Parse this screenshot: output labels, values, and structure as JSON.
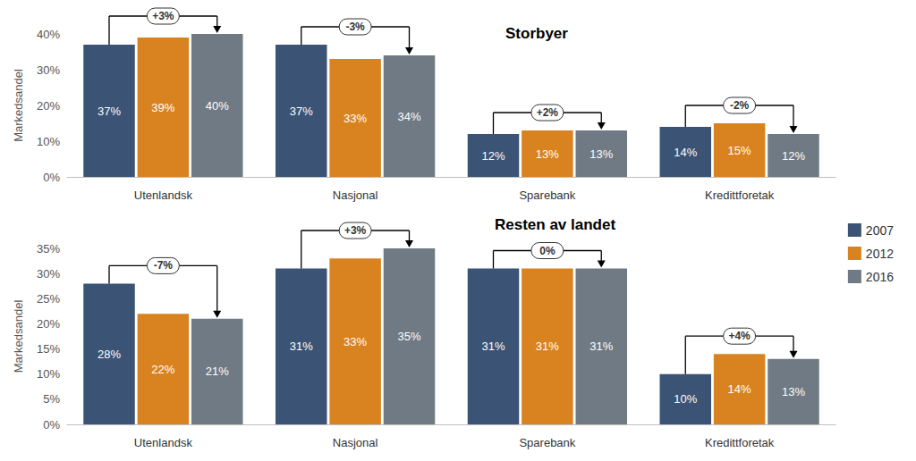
{
  "chart_data": [
    {
      "type": "bar",
      "title": "Storbyer",
      "y_label": "Markedsandel",
      "categories": [
        "Utenlandsk",
        "Nasjonal",
        "Sparebank",
        "Kredittforetak"
      ],
      "series": [
        {
          "name": "2007",
          "color": "#3b5374",
          "values": [
            37,
            37,
            12,
            14
          ],
          "value_labels": [
            "37%",
            "37%",
            "12%",
            "14%"
          ]
        },
        {
          "name": "2012",
          "color": "#d98320",
          "values": [
            39,
            33,
            13,
            15
          ],
          "value_labels": [
            "39%",
            "33%",
            "13%",
            "15%"
          ]
        },
        {
          "name": "2016",
          "color": "#6f7a84",
          "values": [
            40,
            34,
            13,
            12
          ],
          "value_labels": [
            "40%",
            "34%",
            "13%",
            "12%"
          ]
        }
      ],
      "annotations": [
        "+3%",
        "-3%",
        "+2%",
        "-2%"
      ],
      "ylim": [
        0,
        40
      ],
      "yticks": [
        {
          "value": 0,
          "label": "0%"
        },
        {
          "value": 10,
          "label": "10%"
        },
        {
          "value": 20,
          "label": "20%"
        },
        {
          "value": 30,
          "label": "30%"
        },
        {
          "value": 40,
          "label": "40%"
        }
      ],
      "grid": false,
      "data_labels": true
    },
    {
      "type": "bar",
      "title": "Resten av landet",
      "y_label": "Markedsandel",
      "categories": [
        "Utenlandsk",
        "Nasjonal",
        "Sparebank",
        "Kredittforetak"
      ],
      "series": [
        {
          "name": "2007",
          "color": "#3b5374",
          "values": [
            28,
            31,
            31,
            10
          ],
          "value_labels": [
            "28%",
            "31%",
            "31%",
            "10%"
          ]
        },
        {
          "name": "2012",
          "color": "#d98320",
          "values": [
            22,
            33,
            31,
            14
          ],
          "value_labels": [
            "22%",
            "33%",
            "31%",
            "14%"
          ]
        },
        {
          "name": "2016",
          "color": "#6f7a84",
          "values": [
            21,
            35,
            31,
            13
          ],
          "value_labels": [
            "21%",
            "35%",
            "31%",
            "13%"
          ]
        }
      ],
      "annotations": [
        "-7%",
        "+3%",
        "0%",
        "+4%"
      ],
      "ylim": [
        0,
        35
      ],
      "yticks": [
        {
          "value": 0,
          "label": "0%"
        },
        {
          "value": 5,
          "label": "5%"
        },
        {
          "value": 10,
          "label": "10%"
        },
        {
          "value": 15,
          "label": "15%"
        },
        {
          "value": 20,
          "label": "20%"
        },
        {
          "value": 25,
          "label": "25%"
        },
        {
          "value": 30,
          "label": "30%"
        },
        {
          "value": 35,
          "label": "35%"
        }
      ],
      "grid": false,
      "data_labels": true,
      "legend": "right"
    }
  ]
}
